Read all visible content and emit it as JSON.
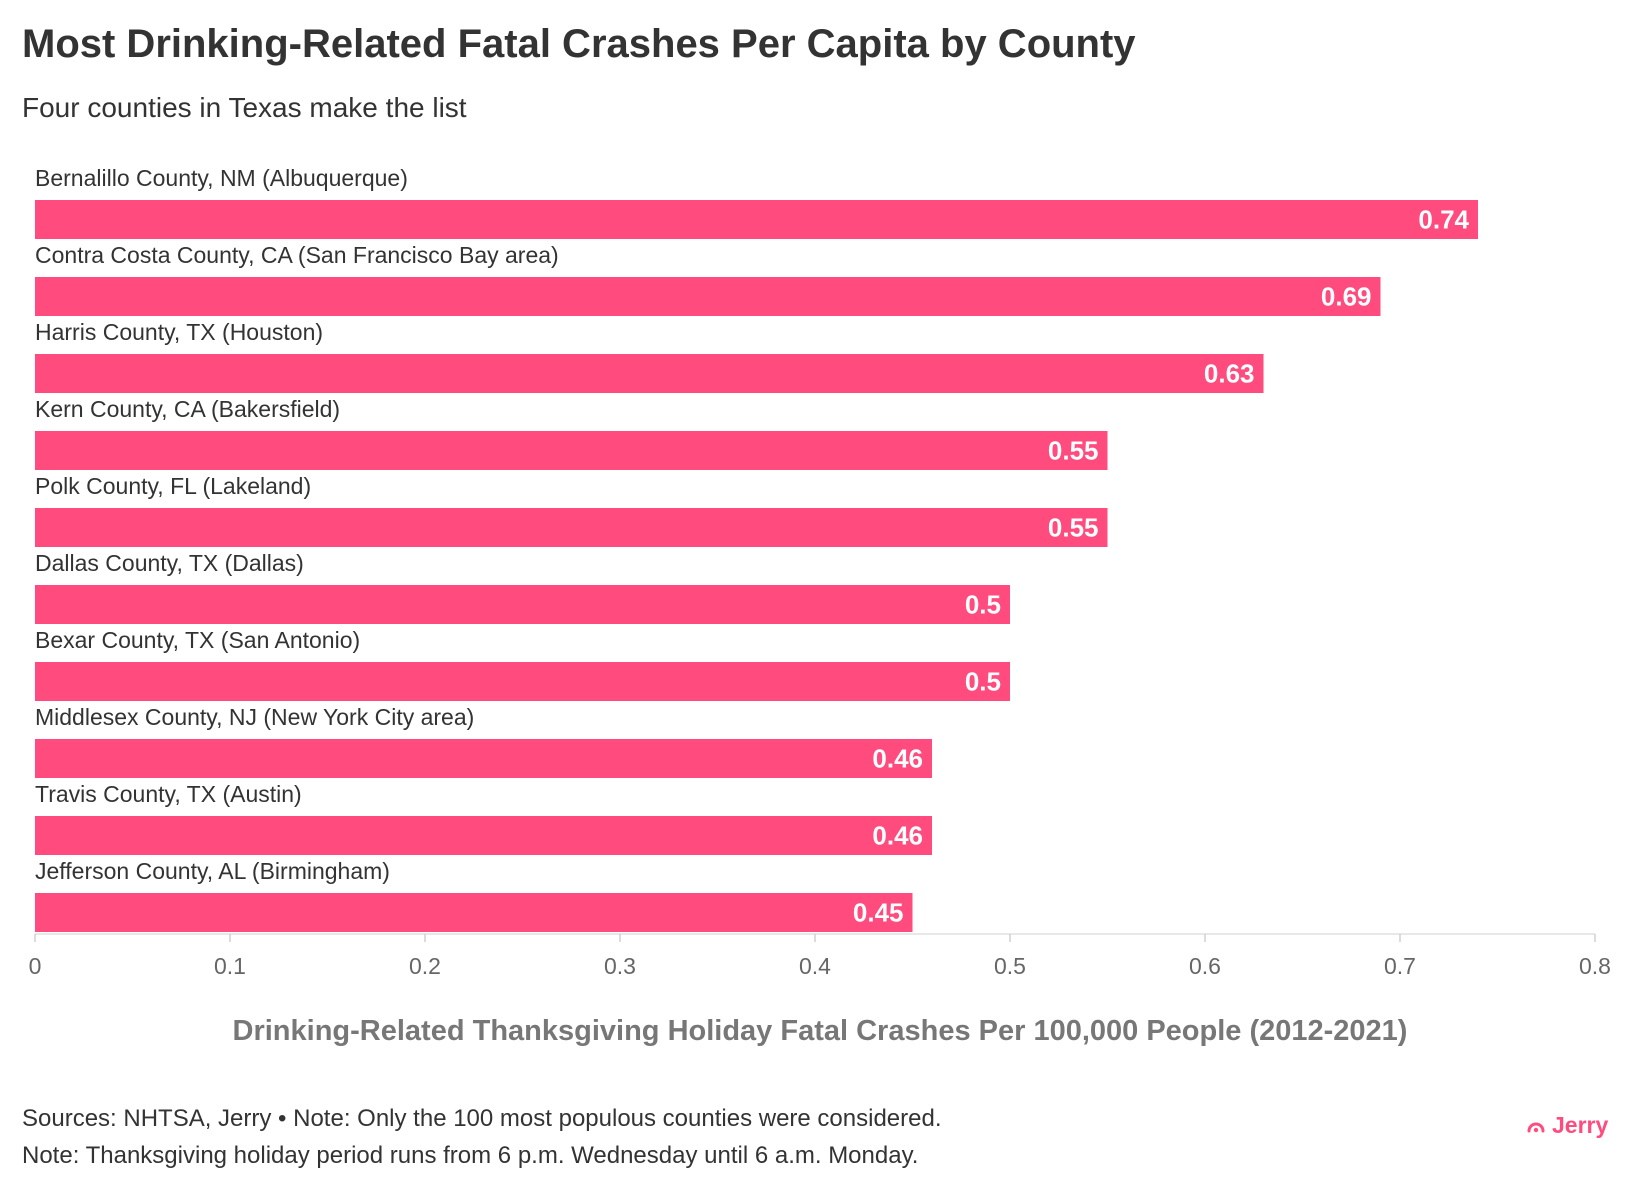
{
  "title": "Most Drinking-Related Fatal Crashes Per Capita by County",
  "subtitle": "Four counties in Texas make the list",
  "notes": [
    "Sources: NHTSA, Jerry • Note: Only the 100 most populous counties were considered.",
    "Note: Thanksgiving holiday period runs from 6 p.m. Wednesday until 6 a.m. Monday."
  ],
  "brand": {
    "name": "Jerry",
    "icon": "jerry-logo-icon",
    "color": "#ff4b7d"
  },
  "chart_data": {
    "type": "bar",
    "orientation": "horizontal",
    "title": "Most Drinking-Related Fatal Crashes Per Capita by County",
    "subtitle": "Four counties in Texas make the list",
    "xlabel": "Drinking-Related Thanksgiving Holiday Fatal Crashes Per 100,000 People (2012-2021)",
    "ylabel": "",
    "xlim": [
      0,
      0.8
    ],
    "xticks": [
      "0",
      "0.1",
      "0.2",
      "0.3",
      "0.4",
      "0.5",
      "0.6",
      "0.7",
      "0.8"
    ],
    "grid": false,
    "bar_color": "#ff4b7d",
    "categories": [
      "Bernalillo County, NM (Albuquerque)",
      "Contra Costa County, CA (San Francisco Bay area)",
      "Harris County, TX (Houston)",
      "Kern County, CA (Bakersfield)",
      "Polk County, FL (Lakeland)",
      "Dallas County, TX (Dallas)",
      "Bexar County, TX (San Antonio)",
      "Middlesex County, NJ (New York City area)",
      "Travis County, TX (Austin)",
      "Jefferson County, AL (Birmingham)"
    ],
    "values": [
      0.74,
      0.69,
      0.63,
      0.55,
      0.55,
      0.5,
      0.5,
      0.46,
      0.46,
      0.45
    ],
    "value_labels": [
      "0.74",
      "0.69",
      "0.63",
      "0.55",
      "0.55",
      "0.5",
      "0.5",
      "0.46",
      "0.46",
      "0.45"
    ]
  }
}
